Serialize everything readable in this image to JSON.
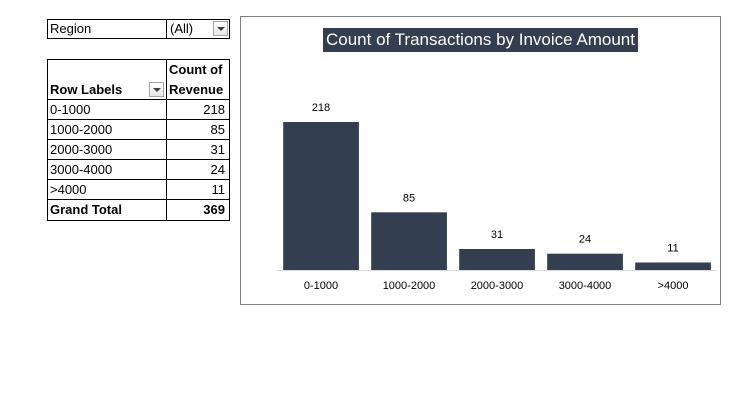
{
  "filter": {
    "label": "Region",
    "value": "(All)"
  },
  "pivot": {
    "header_label": "Row Labels",
    "header_value": "Count of Revenue",
    "rows": [
      {
        "label": "0-1000",
        "value": "218"
      },
      {
        "label": "1000-2000",
        "value": "85"
      },
      {
        "label": "2000-3000",
        "value": "31"
      },
      {
        "label": "3000-4000",
        "value": "24"
      },
      {
        "label": ">4000",
        "value": "11"
      }
    ],
    "total_label": "Grand Total",
    "total_value": "369"
  },
  "chart_data": {
    "type": "bar",
    "title": "Count of Transactions by Invoice Amount",
    "categories": [
      "0-1000",
      "1000-2000",
      "2000-3000",
      "3000-4000",
      ">4000"
    ],
    "values": [
      218,
      85,
      31,
      24,
      11
    ],
    "ylim": [
      0,
      218
    ],
    "bar_color": "#333f50",
    "grid": false,
    "legend": "none",
    "data_labels": true
  }
}
